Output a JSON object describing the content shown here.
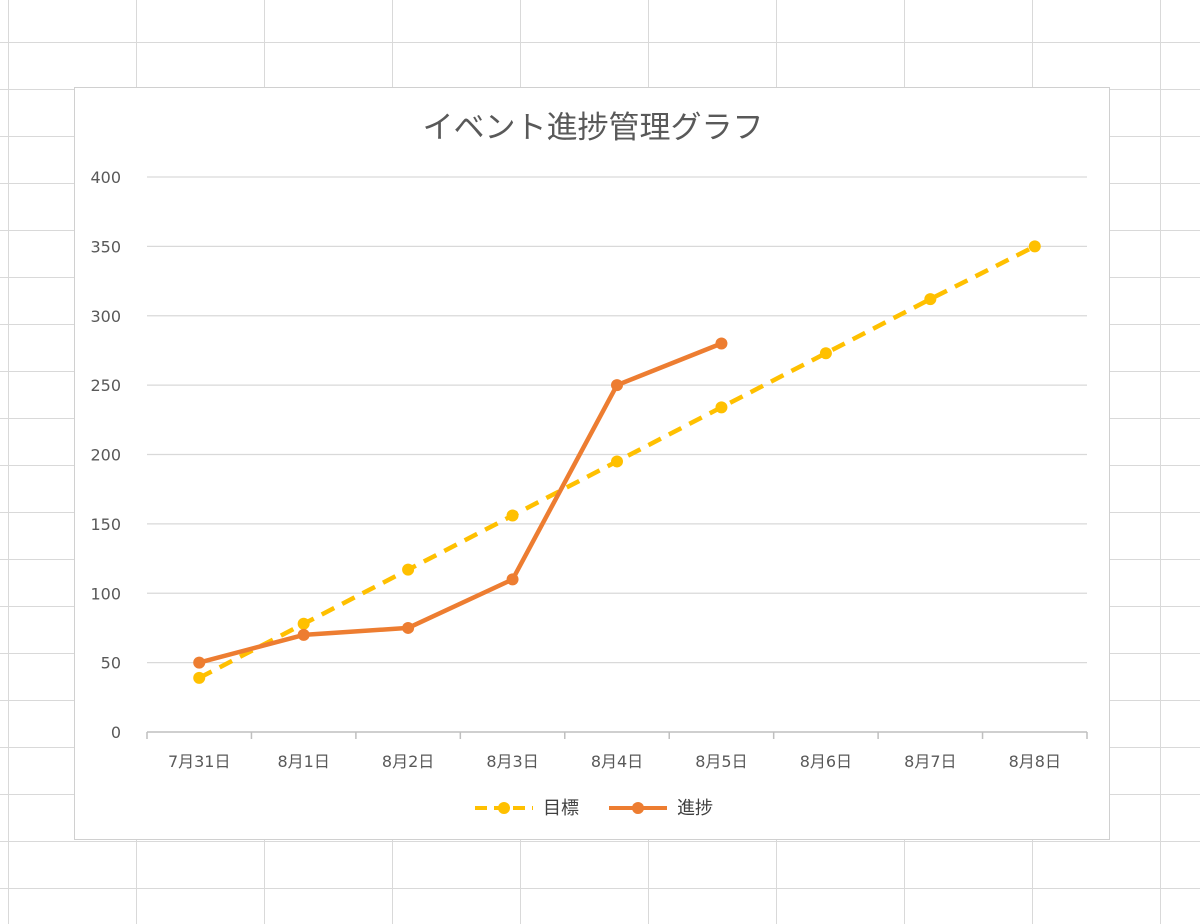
{
  "chart_data": {
    "type": "line",
    "title": "イベント進捗管理グラフ",
    "categories": [
      "7月31日",
      "8月1日",
      "8月2日",
      "8月3日",
      "8月4日",
      "8月5日",
      "8月6日",
      "8月7日",
      "8月8日"
    ],
    "series": [
      {
        "name": "目標",
        "color": "#FFC000",
        "line_style": "dashed",
        "values": [
          39,
          78,
          117,
          156,
          195,
          234,
          273,
          312,
          350
        ]
      },
      {
        "name": "進捗",
        "color": "#ED7D31",
        "line_style": "solid",
        "values": [
          50,
          70,
          75,
          110,
          250,
          280,
          null,
          null,
          null
        ]
      }
    ],
    "ylim": [
      0,
      400
    ],
    "yticks": [
      0,
      50,
      100,
      150,
      200,
      250,
      300,
      350,
      400
    ],
    "grid": true,
    "legend_position": "bottom"
  }
}
